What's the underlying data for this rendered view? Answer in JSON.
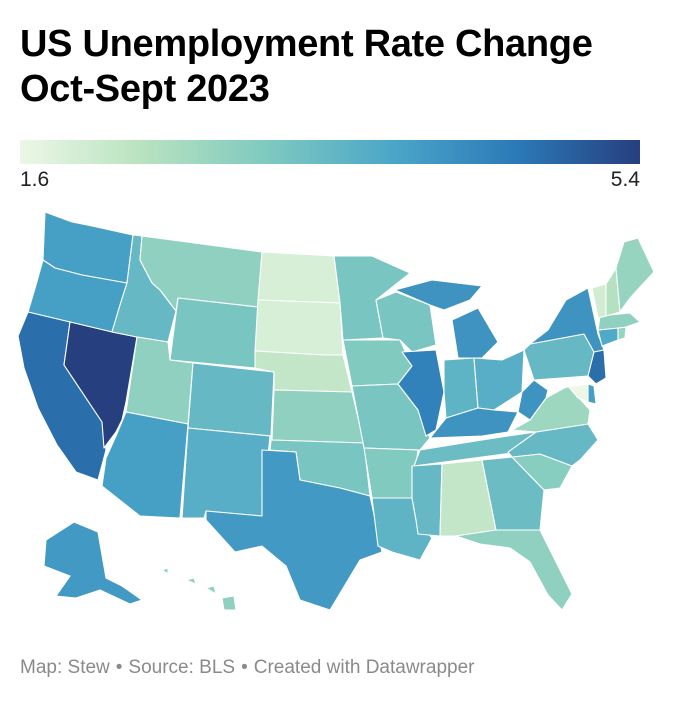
{
  "header": {
    "title_line1": "US Unemployment Rate Change",
    "title_line2": "Oct-Sept 2023"
  },
  "legend": {
    "min_label": "1.6",
    "max_label": "5.4",
    "min": 1.6,
    "max": 5.4,
    "colors": [
      "#ecf7e6",
      "#b8e2c0",
      "#7ec9c0",
      "#4ba6c8",
      "#2b7ab8",
      "#263f7f"
    ]
  },
  "footer": {
    "map_credit": "Map: Stew",
    "source": "Source: BLS",
    "created": "Created with Datawrapper",
    "separator": "•"
  },
  "map_data": {
    "WA": 4.0,
    "OR": 4.0,
    "CA": 4.8,
    "NV": 5.4,
    "ID": 3.5,
    "MT": 2.9,
    "WY": 3.2,
    "UT": 2.9,
    "AZ": 4.0,
    "CO": 3.5,
    "NM": 3.7,
    "ND": 1.9,
    "SD": 1.9,
    "NE": 2.2,
    "KS": 2.9,
    "OK": 3.2,
    "TX": 4.1,
    "MN": 3.2,
    "IA": 3.1,
    "MO": 3.2,
    "AR": 3.1,
    "LA": 3.6,
    "WI": 3.2,
    "IL": 4.5,
    "MI": 4.2,
    "IN": 3.6,
    "OH": 3.7,
    "KY": 4.2,
    "TN": 3.4,
    "MS": 3.5,
    "AL": 2.2,
    "GA": 3.4,
    "FL": 2.9,
    "SC": 3.0,
    "NC": 3.5,
    "VA": 2.7,
    "WV": 4.2,
    "PA": 3.5,
    "NY": 4.2,
    "NJ": 4.8,
    "DE": 4.0,
    "MD": 1.6,
    "CT": 3.8,
    "RI": 2.8,
    "MA": 2.9,
    "VT": 2.0,
    "NH": 2.4,
    "ME": 2.8,
    "AK": 4.1,
    "HI": 2.9
  }
}
